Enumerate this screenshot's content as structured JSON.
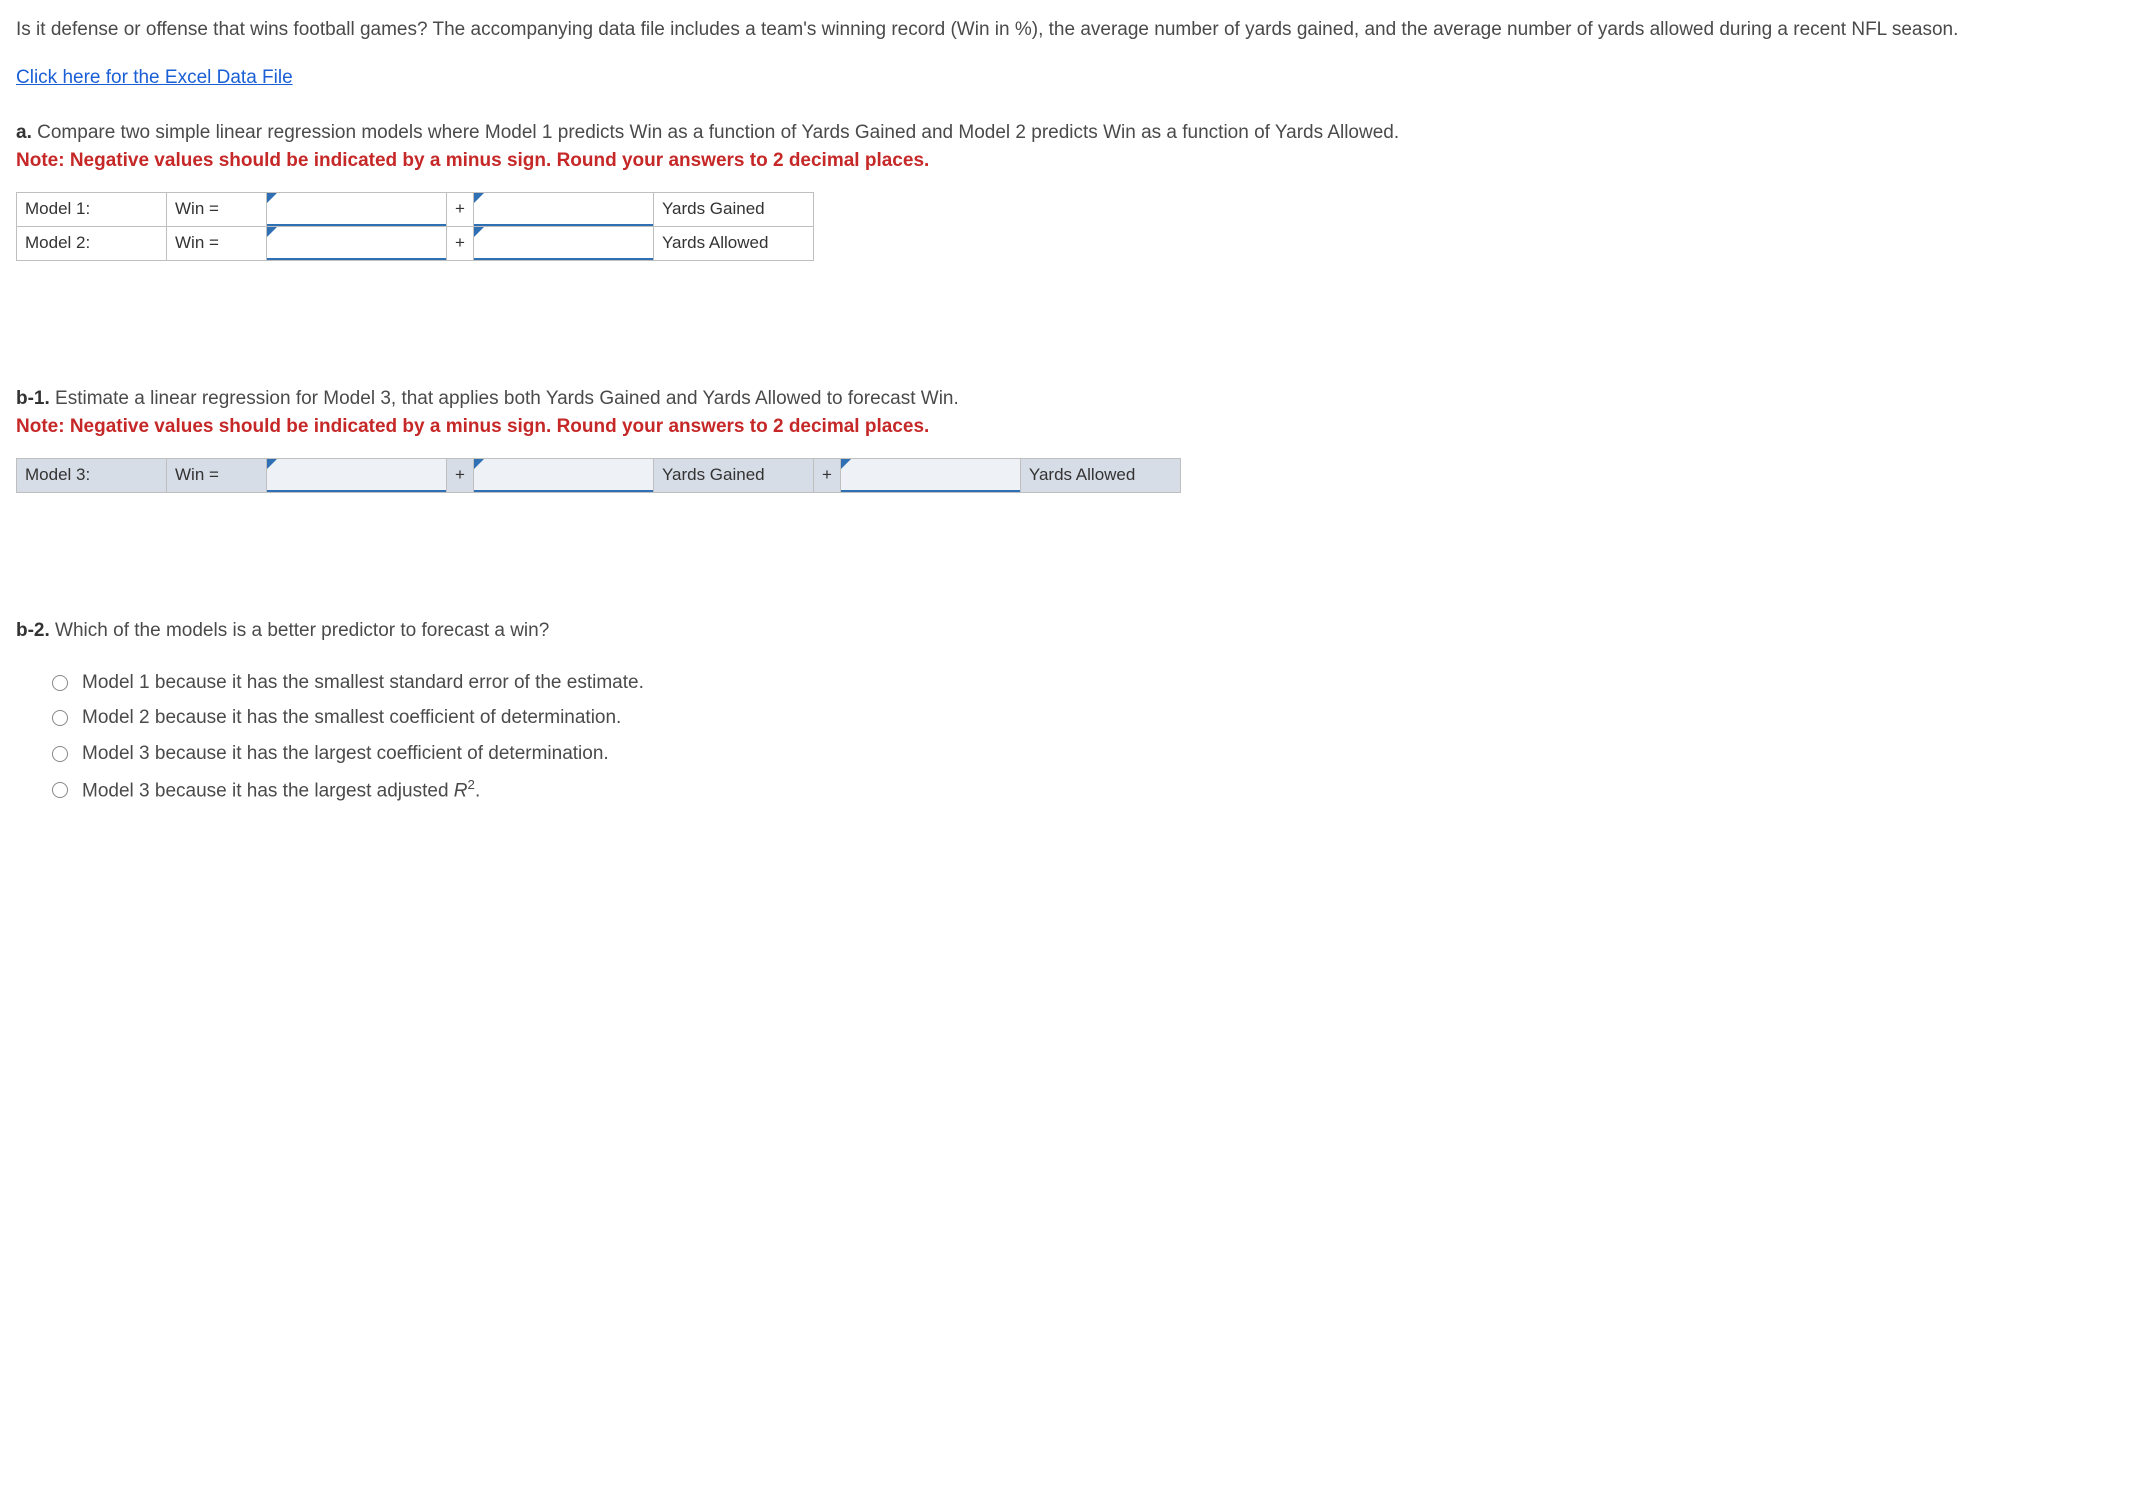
{
  "intro_text": "Is it defense or offense that wins football games? The accompanying data file includes a team's winning record (Win in %), the average number of yards gained, and the average number of yards allowed during a recent NFL season.",
  "link_text": "Click here for the Excel Data File",
  "part_a": {
    "label": "a.",
    "text": " Compare two simple linear regression models where Model 1 predicts Win as a function of Yards Gained and Model 2 predicts Win as a function of Yards Allowed.",
    "note": "Note: Negative values should be indicated by a minus sign. Round your answers to 2 decimal places."
  },
  "table_a": {
    "rows": [
      {
        "model": "Model 1:",
        "lhs": "Win =",
        "op": "+",
        "var": "Yards Gained"
      },
      {
        "model": "Model 2:",
        "lhs": "Win =",
        "op": "+",
        "var": "Yards Allowed"
      }
    ]
  },
  "part_b1": {
    "label": "b-1.",
    "text": " Estimate a linear regression for Model 3, that applies both Yards Gained and Yards Allowed to forecast Win.",
    "note": "Note: Negative values should be indicated by a minus sign. Round your answers to 2 decimal places."
  },
  "table_b": {
    "row": {
      "model": "Model 3:",
      "lhs": "Win =",
      "op1": "+",
      "var1": "Yards Gained",
      "op2": "+",
      "var2": "Yards Allowed"
    }
  },
  "part_b2": {
    "label": "b-2.",
    "text": " Which of the models is a better predictor to forecast a win?"
  },
  "options": [
    "Model 1 because it has the smallest standard error of the estimate.",
    "Model 2 because it has the smallest coefficient of determination.",
    "Model 3 because it has the largest coefficient of determination."
  ],
  "option4_prefix": "Model 3 because it has the largest adjusted ",
  "option4_var": "R",
  "option4_sup": "2",
  "option4_suffix": "."
}
